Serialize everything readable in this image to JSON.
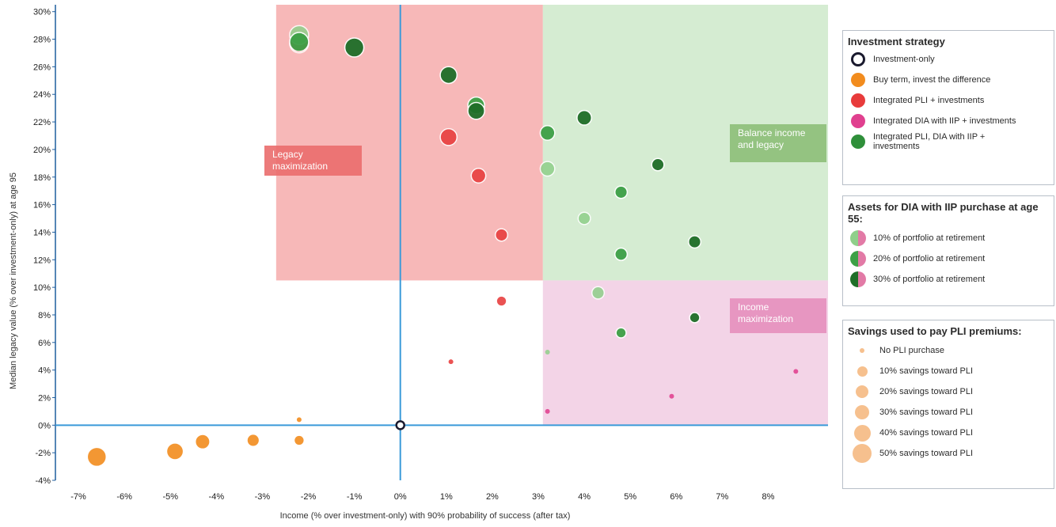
{
  "chart_data": {
    "type": "scatter",
    "xlabel": "Income (% over investment-only) with 90% probability of success (after tax)",
    "ylabel": "Median legacy value (% over investment-only) at age 95",
    "xlim": [
      -7.5,
      9.3
    ],
    "ylim": [
      -4,
      30.5
    ],
    "x_ticks": [
      "-7%",
      "-6%",
      "-5%",
      "-4%",
      "-3%",
      "-2%",
      "-1%",
      "0%",
      "1%",
      "2%",
      "3%",
      "4%",
      "5%",
      "6%",
      "7%",
      "8%"
    ],
    "y_ticks": [
      "-4%",
      "-2%",
      "0%",
      "2%",
      "4%",
      "6%",
      "8%",
      "10%",
      "12%",
      "14%",
      "16%",
      "18%",
      "20%",
      "22%",
      "24%",
      "26%",
      "28%",
      "30%"
    ],
    "grid": false,
    "legend_position": "right",
    "regions": [
      {
        "label": "Legacy maximization",
        "x_range": [
          -2.7,
          3.1
        ],
        "y_range": [
          10.5,
          30.5
        ],
        "color": "#f4a0a0"
      },
      {
        "label": "Balance income and legacy",
        "x_range": [
          3.1,
          9.3
        ],
        "y_range": [
          10.5,
          30.5
        ],
        "color": "#c7e6c3"
      },
      {
        "label": "Income maximization",
        "x_range": [
          3.1,
          9.3
        ],
        "y_range": [
          0,
          10.5
        ],
        "color": "#efc6df"
      }
    ],
    "series": [
      {
        "name": "Investment-only",
        "color": "#1a1a2e",
        "points": [
          {
            "x": 0,
            "y": 0,
            "size": 0
          }
        ]
      },
      {
        "name": "Buy term, invest the difference",
        "color": "#f28c1e",
        "points": [
          {
            "x": -6.6,
            "y": -2.3,
            "size": 50
          },
          {
            "x": -4.9,
            "y": -1.9,
            "size": 40
          },
          {
            "x": -4.3,
            "y": -1.2,
            "size": 30
          },
          {
            "x": -3.2,
            "y": -1.1,
            "size": 20
          },
          {
            "x": -2.2,
            "y": -1.1,
            "size": 10
          },
          {
            "x": -2.2,
            "y": 0.4,
            "size": 0
          }
        ]
      },
      {
        "name": "Integrated PLI + investments",
        "color": "#e83b3b",
        "points": [
          {
            "x": -2.2,
            "y": 27.7,
            "size": 50
          },
          {
            "x": 1.05,
            "y": 20.9,
            "size": 40
          },
          {
            "x": 1.7,
            "y": 18.1,
            "size": 30
          },
          {
            "x": 2.2,
            "y": 13.8,
            "size": 20
          },
          {
            "x": 2.2,
            "y": 9.0,
            "size": 10
          },
          {
            "x": 1.1,
            "y": 4.6,
            "size": 0
          }
        ]
      },
      {
        "name": "Integrated DIA with IIP + investments",
        "color": "#e0408f",
        "points": [
          {
            "x": 8.6,
            "y": 3.9,
            "size": 0
          },
          {
            "x": 5.9,
            "y": 2.1,
            "size": 0
          },
          {
            "x": 3.2,
            "y": 1.0,
            "size": 0
          }
        ]
      },
      {
        "name": "Integrated PLI, DIA with IIP + investments",
        "color": "#2f8f3a",
        "points": [
          {
            "x": -2.2,
            "y": 28.3,
            "size": 50,
            "dia": 10
          },
          {
            "x": -2.2,
            "y": 27.8,
            "size": 50,
            "dia": 20
          },
          {
            "x": -1.0,
            "y": 27.4,
            "size": 50,
            "dia": 30
          },
          {
            "x": 1.05,
            "y": 25.4,
            "size": 40,
            "dia": 30
          },
          {
            "x": 1.65,
            "y": 23.2,
            "size": 40,
            "dia": 20
          },
          {
            "x": 1.65,
            "y": 22.8,
            "size": 40,
            "dia": 30
          },
          {
            "x": 3.2,
            "y": 21.2,
            "size": 30,
            "dia": 20
          },
          {
            "x": 4.0,
            "y": 22.3,
            "size": 30,
            "dia": 30
          },
          {
            "x": 3.2,
            "y": 18.6,
            "size": 30,
            "dia": 10
          },
          {
            "x": 5.6,
            "y": 18.9,
            "size": 20,
            "dia": 30
          },
          {
            "x": 4.8,
            "y": 16.9,
            "size": 20,
            "dia": 20
          },
          {
            "x": 4.0,
            "y": 15.0,
            "size": 20,
            "dia": 10
          },
          {
            "x": 6.4,
            "y": 13.3,
            "size": 20,
            "dia": 30
          },
          {
            "x": 4.8,
            "y": 12.4,
            "size": 20,
            "dia": 20
          },
          {
            "x": 4.3,
            "y": 9.6,
            "size": 20,
            "dia": 10
          },
          {
            "x": 6.4,
            "y": 7.8,
            "size": 10,
            "dia": 30
          },
          {
            "x": 4.8,
            "y": 6.7,
            "size": 10,
            "dia": 20
          },
          {
            "x": 3.2,
            "y": 5.3,
            "size": 0,
            "dia": 10
          }
        ]
      }
    ]
  },
  "legend": {
    "strategy_title": "Investment strategy",
    "strategy_items": [
      {
        "label": "Investment-only",
        "color": "#1a1a2e",
        "kind": "ring"
      },
      {
        "label": "Buy term, invest the difference",
        "color": "#f28c1e",
        "kind": "fill"
      },
      {
        "label": "Integrated PLI + investments",
        "color": "#e83b3b",
        "kind": "fill"
      },
      {
        "label": "Integrated DIA with IIP + investments",
        "color": "#e0408f",
        "kind": "fill"
      },
      {
        "label": "Integrated PLI, DIA with IIP + investments",
        "color": "#2f8f3a",
        "kind": "fill"
      }
    ],
    "dia_title": "Assets for DIA with IIP purchase at age 55:",
    "dia_items": [
      {
        "label": "10% of portfolio at retirement",
        "shade": "#8fcf8a"
      },
      {
        "label": "20% of portfolio at retirement",
        "shade": "#3da046"
      },
      {
        "label": "30% of portfolio at retirement",
        "shade": "#1f6e28"
      }
    ],
    "size_title": "Savings used to pay PLI premiums:",
    "size_items": [
      {
        "label": "No PLI purchase",
        "size": 0
      },
      {
        "label": "10% savings toward PLI",
        "size": 10
      },
      {
        "label": "20% savings toward PLI",
        "size": 20
      },
      {
        "label": "30% savings toward PLI",
        "size": 30
      },
      {
        "label": "40% savings toward PLI",
        "size": 40
      },
      {
        "label": "50% savings toward PLI",
        "size": 50
      }
    ]
  }
}
